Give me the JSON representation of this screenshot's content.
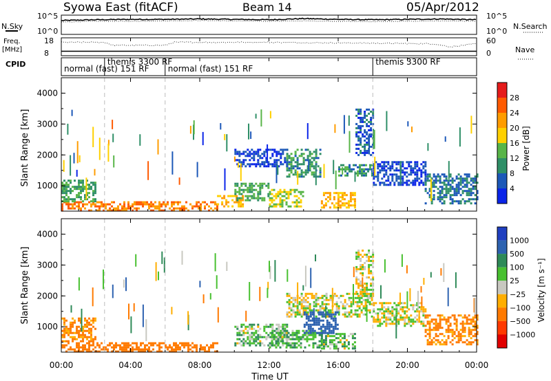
{
  "header": {
    "station": "Syowa East (fitACF)",
    "beam": "Beam 14",
    "date": "05/Apr/2012"
  },
  "noise_panel": {
    "left_label": "N.Sky",
    "left_ticks": [
      "10^5",
      "10^0"
    ],
    "right_label": "N.Search",
    "right_ticks": [
      "10^5",
      "10^0"
    ]
  },
  "freq_panel": {
    "left_label_line1": "Freq.",
    "left_label_line2": "[MHz]",
    "left_ticks": [
      "18",
      "8"
    ],
    "right_label": "Nave",
    "right_ticks": [
      "60",
      "0"
    ]
  },
  "cpid_panel": {
    "label": "CPID",
    "segments": [
      {
        "start_hour": 0.0,
        "name": "normal (fast) 151 RF"
      },
      {
        "start_hour": 2.5,
        "name": "themis 3300 RF"
      },
      {
        "start_hour": 6.0,
        "name": "normal (fast) 151 RF"
      },
      {
        "start_hour": 18.0,
        "name": "themis 3300 RF"
      }
    ]
  },
  "power_panel": {
    "ylabel": "Slant Range [km]",
    "yticks": [
      "1000",
      "2000",
      "3000",
      "4000"
    ],
    "colorbar": {
      "label": "Power [dB]",
      "ticks": [
        "4",
        "8",
        "12",
        "16",
        "20",
        "24",
        "28"
      ],
      "colors": [
        "#0a24e8",
        "#1c58b8",
        "#2f8f67",
        "#58b548",
        "#ffd000",
        "#ff9c00",
        "#ff5a00",
        "#e51b1b"
      ]
    }
  },
  "velocity_panel": {
    "ylabel": "Slant Range [km]",
    "yticks": [
      "1000",
      "2000",
      "3000",
      "4000"
    ],
    "colorbar": {
      "label": "Velocity [m s⁻¹]",
      "ticks": [
        "1000",
        "500",
        "100",
        "25",
        "−25",
        "−100",
        "−500",
        "−1000"
      ],
      "colors": [
        "#1f3fc0",
        "#2d62b0",
        "#2e8a58",
        "#48c030",
        "#c8c8c0",
        "#ffae00",
        "#ff7a00",
        "#ff3a00",
        "#e10000"
      ]
    }
  },
  "time_axis": {
    "ticks": [
      "00:00",
      "04:00",
      "08:00",
      "12:00",
      "16:00",
      "20:00",
      "00:00"
    ],
    "label": "Time UT"
  },
  "chart_data": [
    {
      "type": "line",
      "title": "N.Sky / N.Search",
      "x_hours": [
        0,
        2,
        4,
        6,
        8,
        10,
        12,
        14,
        16,
        18,
        20,
        22,
        24
      ],
      "series": [
        {
          "name": "N.Sky",
          "log10_values": [
            3.6,
            3.8,
            3.9,
            3.9,
            4.0,
            3.9,
            3.8,
            4.1,
            3.9,
            3.8,
            3.9,
            4.0,
            3.8
          ]
        },
        {
          "name": "N.Search",
          "log10_values": [
            3.2,
            3.4,
            3.4,
            3.5,
            3.6,
            3.5,
            3.4,
            3.5,
            3.4,
            3.3,
            3.4,
            3.5,
            3.4
          ]
        }
      ],
      "ylim_log10": [
        0,
        5
      ]
    },
    {
      "type": "line",
      "title": "Freq. / Nave",
      "x_hours": [
        0,
        2.5,
        3,
        6,
        6.5,
        12,
        18,
        21.5,
        22.5,
        24
      ],
      "series": [
        {
          "name": "Freq.",
          "values": [
            10.5,
            10.5,
            10.5,
            10.5,
            10.5,
            10.5,
            10.5,
            10.5,
            10.5,
            10.5
          ]
        },
        {
          "name": "Nave",
          "values": [
            45,
            45,
            35,
            35,
            45,
            45,
            42,
            40,
            30,
            40
          ]
        }
      ],
      "ylim": [
        8,
        18
      ]
    },
    {
      "type": "heatmap",
      "title": "Power [dB]",
      "xlim_hours": [
        0,
        24
      ],
      "ylim_km": [
        180,
        4500
      ],
      "clim": [
        0,
        30
      ],
      "regions": [
        {
          "t": [
            0,
            9
          ],
          "r": [
            200,
            500
          ],
          "value": 26
        },
        {
          "t": [
            0,
            2
          ],
          "r": [
            500,
            1200
          ],
          "value": 14
        },
        {
          "t": [
            9,
            10.5
          ],
          "r": [
            300,
            700
          ],
          "value": 22
        },
        {
          "t": [
            10,
            12
          ],
          "r": [
            500,
            1100
          ],
          "value": 14
        },
        {
          "t": [
            12,
            14
          ],
          "r": [
            300,
            900
          ],
          "value": 18
        },
        {
          "t": [
            13,
            15
          ],
          "r": [
            1300,
            2200
          ],
          "value": 12
        },
        {
          "t": [
            15,
            17
          ],
          "r": [
            300,
            800
          ],
          "value": 22
        },
        {
          "t": [
            16,
            18
          ],
          "r": [
            1300,
            1700
          ],
          "value": 12
        },
        {
          "t": [
            17,
            18
          ],
          "r": [
            2000,
            3500
          ],
          "value": 8
        },
        {
          "t": [
            18,
            21
          ],
          "r": [
            1000,
            1800
          ],
          "value": 6
        },
        {
          "t": [
            21,
            24
          ],
          "r": [
            400,
            1400
          ],
          "value": 10
        },
        {
          "t": [
            10,
            13
          ],
          "r": [
            1600,
            2200
          ],
          "value": 6
        }
      ]
    },
    {
      "type": "heatmap",
      "title": "Velocity",
      "xlim_hours": [
        0,
        24
      ],
      "ylim_km": [
        180,
        4500
      ],
      "clim": [
        -1000,
        1000
      ],
      "regions": [
        {
          "t": [
            0,
            9
          ],
          "r": [
            200,
            500
          ],
          "value": -200
        },
        {
          "t": [
            0,
            2
          ],
          "r": [
            500,
            1300
          ],
          "value": -150
        },
        {
          "t": [
            10,
            13
          ],
          "r": [
            400,
            1100
          ],
          "value": 60
        },
        {
          "t": [
            12,
            15
          ],
          "r": [
            300,
            900
          ],
          "value": 100
        },
        {
          "t": [
            13,
            18
          ],
          "r": [
            1300,
            2100
          ],
          "value": 0
        },
        {
          "t": [
            17,
            18
          ],
          "r": [
            2000,
            3500
          ],
          "value": 0
        },
        {
          "t": [
            15,
            17
          ],
          "r": [
            300,
            800
          ],
          "value": 60
        },
        {
          "t": [
            14,
            16
          ],
          "r": [
            800,
            1500
          ],
          "value": 600
        },
        {
          "t": [
            18,
            21
          ],
          "r": [
            1000,
            1800
          ],
          "value": 0
        },
        {
          "t": [
            21,
            24
          ],
          "r": [
            400,
            1400
          ],
          "value": -150
        }
      ]
    }
  ]
}
